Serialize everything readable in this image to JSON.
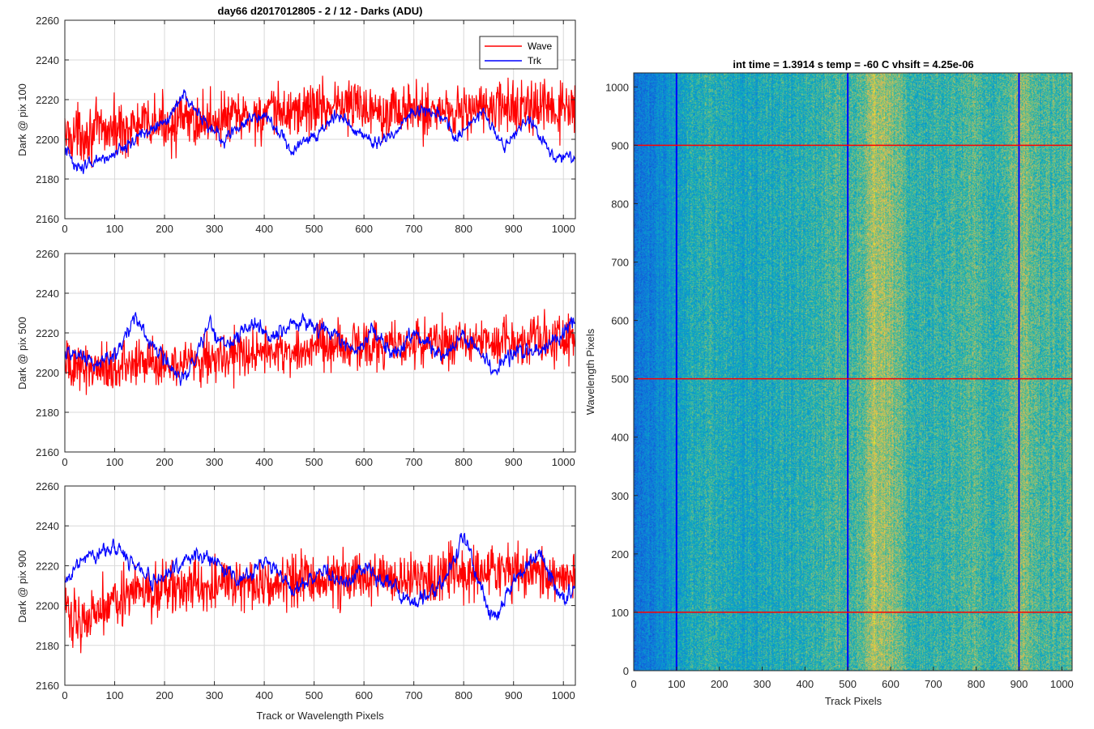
{
  "figure_title": "day66 d2017012805 - 2 / 12 - Darks (ADU)",
  "colors": {
    "wave": "#ff0000",
    "trk": "#0000ff",
    "grid": "#d9d9d9",
    "axis": "#262626"
  },
  "chart_data": [
    {
      "type": "line",
      "title": "day66 d2017012805 - 2 / 12 - Darks (ADU)",
      "xlabel": "",
      "ylabel": "Dark @ pix 100",
      "xlim": [
        0,
        1024
      ],
      "ylim": [
        2160,
        2260
      ],
      "xticks": [
        0,
        100,
        200,
        300,
        400,
        500,
        600,
        700,
        800,
        900,
        1000
      ],
      "yticks": [
        2160,
        2180,
        2200,
        2220,
        2240,
        2260
      ],
      "grid": true,
      "legend": {
        "position": "top-right",
        "entries": [
          "Wave",
          "Trk"
        ]
      },
      "series": [
        {
          "name": "Wave",
          "color": "#ff0000",
          "mean": 2211,
          "noise": 9,
          "trend_x": [
            0,
            200,
            400,
            550,
            700,
            900,
            1024
          ],
          "trend_y": [
            2202,
            2208,
            2212,
            2218,
            2214,
            2216,
            2214
          ]
        },
        {
          "name": "Trk",
          "color": "#0000ff",
          "mean": 2204,
          "noise": 4,
          "trend_x": [
            0,
            30,
            80,
            150,
            200,
            240,
            280,
            320,
            370,
            400,
            450,
            500,
            550,
            580,
            620,
            660,
            700,
            760,
            780,
            840,
            880,
            930,
            980,
            1024
          ],
          "trend_y": [
            2195,
            2185,
            2190,
            2202,
            2208,
            2222,
            2208,
            2200,
            2210,
            2214,
            2195,
            2202,
            2213,
            2205,
            2198,
            2203,
            2215,
            2212,
            2200,
            2214,
            2195,
            2210,
            2192,
            2190
          ]
        }
      ]
    },
    {
      "type": "line",
      "title": "",
      "xlabel": "",
      "ylabel": "Dark @ pix 500",
      "xlim": [
        0,
        1024
      ],
      "ylim": [
        2160,
        2260
      ],
      "xticks": [
        0,
        100,
        200,
        300,
        400,
        500,
        600,
        700,
        800,
        900,
        1000
      ],
      "yticks": [
        2160,
        2180,
        2200,
        2220,
        2240,
        2260
      ],
      "grid": true,
      "series": [
        {
          "name": "Wave",
          "color": "#ff0000",
          "mean": 2210,
          "noise": 8,
          "trend_x": [
            0,
            100,
            300,
            500,
            700,
            900,
            1024
          ],
          "trend_y": [
            2203,
            2203,
            2208,
            2212,
            2215,
            2217,
            2218
          ]
        },
        {
          "name": "Trk",
          "color": "#0000ff",
          "mean": 2212,
          "noise": 5,
          "trend_x": [
            0,
            50,
            100,
            140,
            180,
            240,
            290,
            320,
            380,
            420,
            450,
            490,
            520,
            580,
            620,
            660,
            700,
            760,
            800,
            860,
            900,
            950,
            1000,
            1024
          ],
          "trend_y": [
            2212,
            2205,
            2208,
            2228,
            2212,
            2195,
            2225,
            2212,
            2226,
            2218,
            2224,
            2224,
            2222,
            2212,
            2220,
            2208,
            2220,
            2208,
            2218,
            2202,
            2210,
            2210,
            2220,
            2228
          ]
        }
      ]
    },
    {
      "type": "line",
      "title": "",
      "xlabel": "Track or Wavelength Pixels",
      "ylabel": "Dark @ pix 900",
      "xlim": [
        0,
        1024
      ],
      "ylim": [
        2160,
        2260
      ],
      "xticks": [
        0,
        100,
        200,
        300,
        400,
        500,
        600,
        700,
        800,
        900,
        1000
      ],
      "yticks": [
        2160,
        2180,
        2200,
        2220,
        2240,
        2260
      ],
      "grid": true,
      "series": [
        {
          "name": "Wave",
          "color": "#ff0000",
          "mean": 2210,
          "noise": 9,
          "trend_x": [
            0,
            30,
            100,
            300,
            500,
            700,
            900,
            1024
          ],
          "trend_y": [
            2200,
            2192,
            2205,
            2210,
            2213,
            2215,
            2216,
            2216
          ]
        },
        {
          "name": "Trk",
          "color": "#0000ff",
          "mean": 2218,
          "noise": 5,
          "trend_x": [
            0,
            40,
            100,
            180,
            260,
            300,
            350,
            400,
            460,
            520,
            560,
            600,
            640,
            700,
            760,
            800,
            850,
            870,
            900,
            950,
            1000,
            1024
          ],
          "trend_y": [
            2212,
            2225,
            2228,
            2212,
            2225,
            2222,
            2212,
            2222,
            2208,
            2218,
            2210,
            2220,
            2212,
            2200,
            2212,
            2235,
            2198,
            2194,
            2212,
            2228,
            2202,
            2208
          ]
        }
      ]
    },
    {
      "type": "heatmap",
      "title": "int time = 1.3914 s    temp = -60 C    vhsift = 4.25e-06",
      "xlabel": "Track Pixels",
      "ylabel": "Wavelength Pixels",
      "xlim": [
        0,
        1024
      ],
      "ylim": [
        0,
        1024
      ],
      "xticks": [
        0,
        100,
        200,
        300,
        400,
        500,
        600,
        700,
        800,
        900,
        1000
      ],
      "yticks": [
        0,
        100,
        200,
        300,
        400,
        500,
        600,
        700,
        800,
        900,
        1000
      ],
      "colormap": "parula",
      "column_profile_x": [
        0,
        60,
        150,
        250,
        350,
        450,
        520,
        560,
        600,
        650,
        700,
        800,
        850,
        900,
        960,
        1024
      ],
      "column_profile_level": [
        0.25,
        0.35,
        0.55,
        0.5,
        0.52,
        0.58,
        0.62,
        0.78,
        0.72,
        0.55,
        0.55,
        0.62,
        0.55,
        0.72,
        0.6,
        0.62
      ],
      "vertical_markers": {
        "color": "#0000ff",
        "x": [
          100,
          500,
          900
        ]
      },
      "horizontal_markers": {
        "color": "#ff0000",
        "y": [
          100,
          500,
          900
        ]
      }
    }
  ]
}
